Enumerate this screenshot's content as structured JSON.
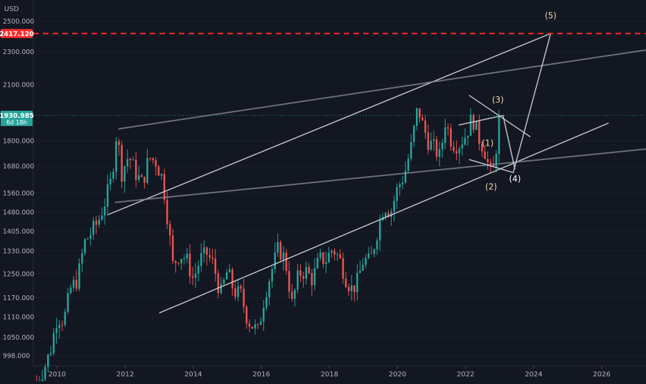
{
  "chart_data": {
    "type": "candlestick",
    "currency": "USD",
    "y_axis": {
      "scale": "log",
      "range": [
        970,
        2650
      ],
      "tick_labels": [
        "2500.000",
        "2300.000",
        "2100.000",
        "1800.000",
        "1680.000",
        "1560.000",
        "1480.000",
        "1405.000",
        "1330.000",
        "1250.000",
        "1170.000",
        "1110.000",
        "1050.000",
        "998.000"
      ]
    },
    "x_axis": {
      "range": [
        2009.3,
        2027.3
      ],
      "tick_labels": [
        "2010",
        "2012",
        "2014",
        "2016",
        "2018",
        "2020",
        "2022",
        "2024",
        "2026"
      ]
    },
    "price_lines": [
      {
        "label": "2417.120",
        "value": 2417.12,
        "color": "#ff2b2b",
        "style": "dashed"
      },
      {
        "label": "1930.985",
        "sub_label": "6d 18h",
        "value": 1930.985,
        "color": "#26a69a",
        "style": "dotted"
      }
    ],
    "close_series": [
      [
        2009.4,
        930
      ],
      [
        2009.6,
        960
      ],
      [
        2009.8,
        1010
      ],
      [
        2010.0,
        1110
      ],
      [
        2010.2,
        1100
      ],
      [
        2010.4,
        1200
      ],
      [
        2010.6,
        1230
      ],
      [
        2010.8,
        1360
      ],
      [
        2011.0,
        1400
      ],
      [
        2011.2,
        1440
      ],
      [
        2011.4,
        1520
      ],
      [
        2011.6,
        1620
      ],
      [
        2011.75,
        1850
      ],
      [
        2011.9,
        1650
      ],
      [
        2012.1,
        1730
      ],
      [
        2012.3,
        1650
      ],
      [
        2012.5,
        1600
      ],
      [
        2012.7,
        1720
      ],
      [
        2012.9,
        1700
      ],
      [
        2013.1,
        1620
      ],
      [
        2013.25,
        1450
      ],
      [
        2013.4,
        1280
      ],
      [
        2013.6,
        1320
      ],
      [
        2013.8,
        1300
      ],
      [
        2014.0,
        1230
      ],
      [
        2014.2,
        1300
      ],
      [
        2014.4,
        1320
      ],
      [
        2014.6,
        1280
      ],
      [
        2014.8,
        1180
      ],
      [
        2015.0,
        1260
      ],
      [
        2015.2,
        1190
      ],
      [
        2015.4,
        1180
      ],
      [
        2015.6,
        1100
      ],
      [
        2015.9,
        1065
      ],
      [
        2016.1,
        1180
      ],
      [
        2016.3,
        1260
      ],
      [
        2016.5,
        1340
      ],
      [
        2016.7,
        1300
      ],
      [
        2016.9,
        1150
      ],
      [
        2017.1,
        1250
      ],
      [
        2017.3,
        1260
      ],
      [
        2017.5,
        1230
      ],
      [
        2017.7,
        1300
      ],
      [
        2017.9,
        1300
      ],
      [
        2018.1,
        1340
      ],
      [
        2018.3,
        1300
      ],
      [
        2018.5,
        1230
      ],
      [
        2018.65,
        1200
      ],
      [
        2018.8,
        1215
      ],
      [
        2019.0,
        1300
      ],
      [
        2019.2,
        1290
      ],
      [
        2019.4,
        1400
      ],
      [
        2019.6,
        1510
      ],
      [
        2019.8,
        1480
      ],
      [
        2020.0,
        1580
      ],
      [
        2020.2,
        1640
      ],
      [
        2020.4,
        1770
      ],
      [
        2020.6,
        1980
      ],
      [
        2020.7,
        1900
      ],
      [
        2020.9,
        1800
      ],
      [
        2021.1,
        1760
      ],
      [
        2021.25,
        1720
      ],
      [
        2021.4,
        1900
      ],
      [
        2021.6,
        1790
      ],
      [
        2021.8,
        1780
      ],
      [
        2022.0,
        1830
      ],
      [
        2022.2,
        1920
      ],
      [
        2022.4,
        1810
      ],
      [
        2022.55,
        1760
      ],
      [
        2022.7,
        1660
      ],
      [
        2022.8,
        1640
      ],
      [
        2022.9,
        1770
      ],
      [
        2023.0,
        1930
      ]
    ],
    "trend_lines": [
      {
        "name": "upper channel",
        "x": [
          2011.5,
          2024.5
        ],
        "y": [
          1470,
          2417
        ]
      },
      {
        "name": "lower channel",
        "x": [
          2013.0,
          2026.2
        ],
        "y": [
          1122,
          1890
        ]
      },
      {
        "name": "long resistance",
        "x": [
          2011.8,
          2027.3
        ],
        "y": [
          1860,
          2310
        ]
      },
      {
        "name": "mid support",
        "x": [
          2011.7,
          2027.3
        ],
        "y": [
          1520,
          1760
        ]
      },
      {
        "name": "wave downtrend",
        "x": [
          2022.1,
          2023.9
        ],
        "y": [
          2040,
          1820
        ]
      },
      {
        "name": "wave projection",
        "x": [
          2022.1,
          2023.4,
          2024.5
        ],
        "y": [
          1710,
          1650,
          2417
        ]
      },
      {
        "name": "wave fan",
        "x": [
          2021.8,
          2023.1,
          2023.45
        ],
        "y": [
          1880,
          1930,
          1665
        ]
      }
    ],
    "wave_labels": [
      {
        "text": "(1)",
        "x": 2022.65,
        "y": 1775,
        "color": "#f3d7a3"
      },
      {
        "text": "(2)",
        "x": 2022.75,
        "y": 1575,
        "color": "#f3d7a3"
      },
      {
        "text": "(3)",
        "x": 2022.95,
        "y": 2000,
        "color": "#f3d7a3"
      },
      {
        "text": "(4)",
        "x": 2023.45,
        "y": 1610,
        "color": "#ffffff"
      },
      {
        "text": "(5)",
        "x": 2024.5,
        "y": 2520,
        "color": "#f3d7a3"
      }
    ]
  }
}
